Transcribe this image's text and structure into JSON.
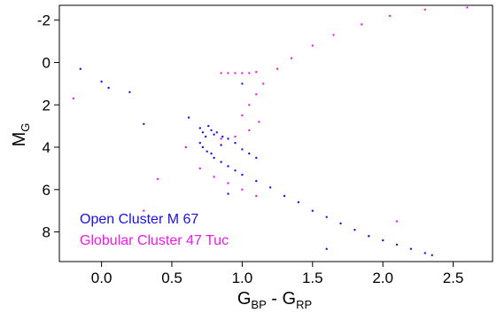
{
  "chart_data": {
    "type": "scatter",
    "title": "",
    "xlabel": {
      "main": "G",
      "sub1": "BP",
      "mid": " - G",
      "sub2": "RP"
    },
    "ylabel": {
      "main": "M",
      "sub": "G"
    },
    "xlim": [
      -0.3,
      2.78
    ],
    "ylim": [
      9.4,
      -2.7
    ],
    "y_inverted": true,
    "xticks": [
      0.0,
      0.5,
      1.0,
      1.5,
      2.0,
      2.5
    ],
    "xtick_labels": [
      "0.0",
      "0.5",
      "1.0",
      "1.5",
      "2.0",
      "2.5"
    ],
    "yticks": [
      -2,
      0,
      2,
      4,
      6,
      8
    ],
    "ytick_labels": [
      "-2",
      "0",
      "2",
      "4",
      "6",
      "8"
    ],
    "grid": false,
    "legend_position": "bottom-left",
    "series": [
      {
        "name": "Open Cluster M 67",
        "color": "#1c10e8",
        "points": [
          [
            -0.15,
            0.3
          ],
          [
            0.05,
            1.2
          ],
          [
            0.0,
            0.9
          ],
          [
            0.2,
            1.4
          ],
          [
            0.3,
            2.9
          ],
          [
            0.62,
            2.6
          ],
          [
            0.7,
            3.1
          ],
          [
            0.72,
            3.3
          ],
          [
            0.74,
            3.5
          ],
          [
            0.76,
            3.0
          ],
          [
            0.78,
            3.2
          ],
          [
            0.8,
            3.4
          ],
          [
            0.82,
            3.3
          ],
          [
            0.86,
            3.5
          ],
          [
            0.9,
            3.6
          ],
          [
            0.95,
            3.8
          ],
          [
            1.0,
            4.1
          ],
          [
            0.7,
            3.8
          ],
          [
            0.72,
            4.0
          ],
          [
            0.75,
            4.2
          ],
          [
            0.78,
            4.3
          ],
          [
            0.8,
            4.5
          ],
          [
            0.85,
            4.7
          ],
          [
            0.9,
            4.9
          ],
          [
            0.95,
            5.1
          ],
          [
            1.0,
            5.3
          ],
          [
            1.1,
            5.6
          ],
          [
            1.2,
            5.9
          ],
          [
            1.3,
            6.3
          ],
          [
            1.4,
            6.6
          ],
          [
            1.5,
            7.0
          ],
          [
            1.6,
            7.3
          ],
          [
            1.7,
            7.6
          ],
          [
            1.8,
            7.9
          ],
          [
            1.9,
            8.2
          ],
          [
            2.0,
            8.4
          ],
          [
            2.1,
            8.6
          ],
          [
            2.2,
            8.8
          ],
          [
            2.3,
            9.0
          ],
          [
            2.35,
            9.1
          ],
          [
            1.05,
            4.3
          ],
          [
            1.1,
            4.5
          ],
          [
            0.85,
            3.9
          ],
          [
            1.0,
            1.0
          ],
          [
            1.6,
            8.8
          ],
          [
            0.9,
            6.2
          ]
        ]
      },
      {
        "name": "Globular Cluster 47 Tuc",
        "color": "#f218e9",
        "points": [
          [
            0.85,
            0.5
          ],
          [
            0.9,
            0.5
          ],
          [
            0.95,
            0.5
          ],
          [
            1.0,
            0.5
          ],
          [
            1.05,
            0.5
          ],
          [
            1.1,
            0.45
          ],
          [
            1.0,
            2.5
          ],
          [
            1.05,
            2.0
          ],
          [
            1.1,
            1.5
          ],
          [
            1.15,
            1.0
          ],
          [
            1.25,
            0.3
          ],
          [
            1.35,
            -0.2
          ],
          [
            1.5,
            -0.8
          ],
          [
            1.65,
            -1.3
          ],
          [
            1.85,
            -1.8
          ],
          [
            2.05,
            -2.2
          ],
          [
            2.3,
            -2.5
          ],
          [
            2.6,
            -2.6
          ],
          [
            0.85,
            3.6
          ],
          [
            0.95,
            3.5
          ],
          [
            1.05,
            3.2
          ],
          [
            1.12,
            2.8
          ],
          [
            0.7,
            5.0
          ],
          [
            0.8,
            5.4
          ],
          [
            0.9,
            5.7
          ],
          [
            1.0,
            6.0
          ],
          [
            1.1,
            6.3
          ],
          [
            0.6,
            4.0
          ],
          [
            0.4,
            5.5
          ],
          [
            0.3,
            7.0
          ],
          [
            -0.2,
            1.7
          ],
          [
            1.9,
            8.2
          ],
          [
            2.1,
            7.5
          ]
        ]
      }
    ]
  }
}
